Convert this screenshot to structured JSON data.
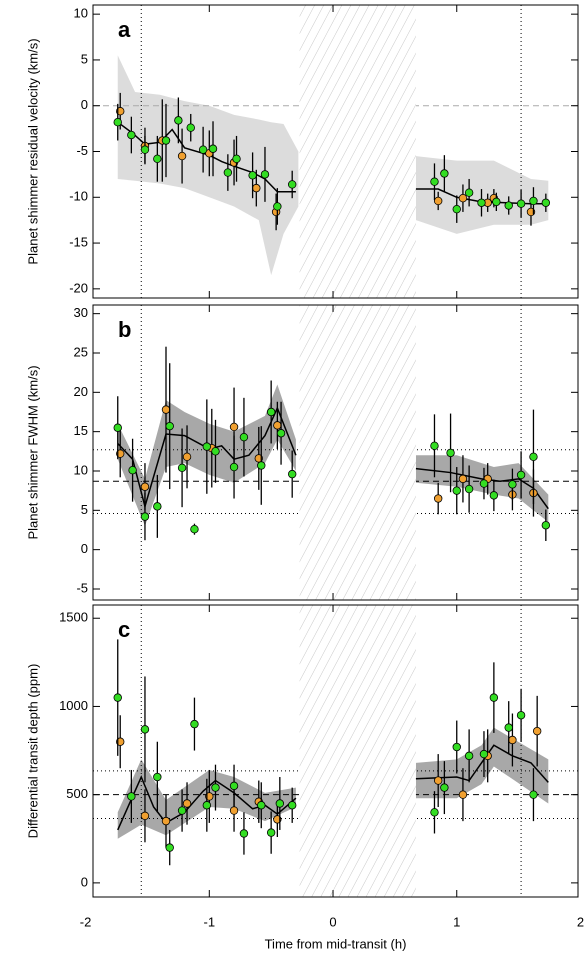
{
  "chart_data": [
    {
      "type": "scatter",
      "panel_label": "a",
      "ylabel": "Planet shimmer residual velocity (km/s)",
      "xlim": [
        -1.94,
        1.98
      ],
      "xticks": [
        -2,
        -1,
        0,
        1,
        2
      ],
      "ylim": [
        -21,
        11
      ],
      "yticks": [
        10,
        5,
        0,
        -5,
        -10,
        -15,
        -20
      ],
      "hatch": [
        -0.27,
        0.67
      ],
      "vlines": [
        -1.55,
        1.52
      ],
      "hlines": [
        {
          "value": 0,
          "style": "dashed",
          "color": "#aaaaaa"
        }
      ],
      "band": {
        "color": "#dcdcdc",
        "x": [
          -1.74,
          -1.6,
          -1.4,
          -1.2,
          -1.0,
          -0.8,
          -0.6,
          -0.5,
          -0.4,
          -0.28,
          null,
          0.67,
          1.0,
          1.3,
          1.6,
          1.74
        ],
        "upper": [
          5.5,
          1.5,
          1.2,
          0.5,
          0,
          -1,
          -1.5,
          -1.8,
          -2,
          -5,
          null,
          -5.5,
          -6,
          -6,
          -8,
          -8.2
        ],
        "lower": [
          -8,
          -8.2,
          -8.5,
          -9,
          -10,
          -11,
          -12.5,
          -18.5,
          -14,
          -11,
          null,
          -12.5,
          -14,
          -13,
          -13,
          -12.5
        ]
      },
      "model": {
        "color": "#000000",
        "x": [
          -1.74,
          -1.62,
          -1.52,
          -1.4,
          -1.3,
          -1.2,
          -1.0,
          -0.9,
          -0.8,
          -0.65,
          -0.55,
          -0.45,
          -0.3,
          null,
          0.67,
          0.85,
          1.0,
          1.2,
          1.4,
          1.6,
          1.74
        ],
        "values": [
          -1.8,
          -3,
          -4.2,
          -4,
          -2.6,
          -4.6,
          -5.4,
          -6.1,
          -6.6,
          -7.3,
          -8,
          -9.4,
          -9.4,
          null,
          -9.1,
          -9.1,
          -10.0,
          -10.5,
          -10.6,
          -10.7,
          -10.7
        ]
      },
      "series": [
        {
          "color": "#f0a030",
          "x": [
            -1.72,
            -1.52,
            -1.38,
            -1.22,
            -1.0,
            -0.8,
            -0.62,
            -0.46,
            0.85,
            1.05,
            1.25,
            1.3,
            1.6
          ],
          "values": [
            -0.6,
            -4.4,
            -3.8,
            -5.5,
            -5.2,
            -6.2,
            -9.0,
            -11.6,
            -10.4,
            -10.1,
            -10.6,
            -10.1,
            -11.6
          ],
          "errors": [
            2,
            2,
            4.5,
            3,
            2.5,
            2.5,
            2,
            2,
            1,
            1.5,
            1,
            1,
            1.5
          ]
        },
        {
          "color": "#33dd22",
          "x": [
            -1.74,
            -1.63,
            -1.52,
            -1.42,
            -1.35,
            -1.25,
            -1.15,
            -1.05,
            -0.97,
            -0.85,
            -0.78,
            -0.65,
            -0.55,
            -0.45,
            -0.33,
            0.82,
            0.9,
            1.0,
            1.1,
            1.2,
            1.32,
            1.42,
            1.52,
            1.62,
            1.72
          ],
          "values": [
            -1.8,
            -3.2,
            -4.8,
            -5.8,
            -3.8,
            -1.6,
            -2.4,
            -4.8,
            -4.7,
            -7.3,
            -5.8,
            -7.6,
            -7.5,
            -11,
            -8.6,
            -8.3,
            -7.4,
            -11.3,
            -9.5,
            -10.6,
            -10.5,
            -10.9,
            -10.7,
            -10.4,
            -10.6
          ],
          "errors": [
            2,
            2,
            1.5,
            2.5,
            4,
            2.5,
            1.5,
            2.5,
            3,
            2,
            2.5,
            2.5,
            3,
            2,
            1.5,
            2,
            2,
            1.5,
            1.5,
            1.5,
            1,
            1,
            1.5,
            1.5,
            1
          ]
        }
      ]
    },
    {
      "type": "scatter",
      "panel_label": "b",
      "ylabel": "Planet shimmer FWHM (km/s)",
      "xlim": [
        -1.94,
        1.98
      ],
      "xticks": [
        -2,
        -1,
        0,
        1,
        2
      ],
      "ylim": [
        -6.4,
        31.1
      ],
      "yticks": [
        30,
        25,
        20,
        15,
        10,
        5,
        0,
        -5
      ],
      "hatch": [
        -0.27,
        0.67
      ],
      "vlines": [
        -1.55,
        1.52
      ],
      "hlines": [
        {
          "value": 8.7,
          "style": "dashed",
          "color": "#000000"
        },
        {
          "value": 12.7,
          "style": "dotted",
          "color": "#000000"
        },
        {
          "value": 4.6,
          "style": "dotted",
          "color": "#000000"
        }
      ],
      "band": {
        "color": "#a8a8a8",
        "x": [
          -1.74,
          -1.52,
          -1.35,
          -1.2,
          -1.0,
          -0.8,
          -0.55,
          -0.45,
          -0.3,
          null,
          0.67,
          1.0,
          1.3,
          1.5,
          1.74
        ],
        "upper": [
          16,
          9,
          19,
          17.5,
          16,
          15,
          17,
          21,
          14,
          null,
          12,
          12,
          10.5,
          11,
          7
        ],
        "lower": [
          11.5,
          3,
          10.5,
          11,
          9.5,
          8.5,
          11,
          14,
          10,
          null,
          8.5,
          8,
          7,
          6.5,
          3.5
        ]
      },
      "model": {
        "color": "#000000",
        "x": [
          -1.74,
          -1.62,
          -1.52,
          -1.35,
          -1.2,
          -1.0,
          -0.9,
          -0.8,
          -0.68,
          -0.55,
          -0.45,
          -0.3,
          null,
          0.67,
          0.95,
          1.2,
          1.35,
          1.5,
          1.62,
          1.74
        ],
        "values": [
          13.5,
          11.5,
          5.5,
          14.7,
          14.5,
          12.8,
          13.2,
          11.5,
          12.0,
          14.5,
          18.0,
          12.0,
          null,
          10.3,
          9.8,
          9.0,
          8.7,
          9.0,
          7.8,
          5.2
        ]
      },
      "series": [
        {
          "color": "#f0a030",
          "x": [
            -1.72,
            -1.52,
            -1.35,
            -1.18,
            -0.98,
            -0.8,
            -0.6,
            -0.45,
            0.85,
            1.05,
            1.25,
            1.45,
            1.62
          ],
          "values": [
            12.2,
            8.0,
            17.8,
            11.8,
            12.9,
            15.6,
            11.6,
            15.8,
            6.5,
            9.0,
            9.0,
            7.0,
            7.2
          ],
          "errors": [
            3,
            3,
            8,
            4,
            5,
            5,
            4,
            3,
            2,
            3,
            2,
            2,
            3
          ]
        },
        {
          "color": "#33dd22",
          "x": [
            -1.74,
            -1.62,
            -1.52,
            -1.42,
            -1.32,
            -1.22,
            -1.12,
            -1.02,
            -0.95,
            -0.8,
            -0.72,
            -0.58,
            -0.5,
            -0.42,
            -0.33,
            0.82,
            0.95,
            1.0,
            1.1,
            1.22,
            1.3,
            1.45,
            1.52,
            1.62,
            1.72
          ],
          "values": [
            15.5,
            10.1,
            4.2,
            5.5,
            15.7,
            10.4,
            2.6,
            13.1,
            12.5,
            10.5,
            14.3,
            10.7,
            17.5,
            14.8,
            9.6,
            13.2,
            12.3,
            7.5,
            7.7,
            8.4,
            6.9,
            8.3,
            9.5,
            11.8,
            3.1
          ],
          "errors": [
            4,
            4,
            3,
            4,
            8,
            5,
            0.7,
            6,
            4,
            4,
            5,
            5,
            4,
            4,
            3,
            4,
            5,
            3,
            3,
            2,
            2,
            2,
            3,
            6,
            2
          ]
        }
      ]
    },
    {
      "type": "scatter",
      "panel_label": "c",
      "ylabel": "Differential transit depth (ppm)",
      "xlabel": "Time from mid-transit (h)",
      "xlim": [
        -1.94,
        1.98
      ],
      "xticks": [
        -2,
        -1,
        0,
        1,
        2
      ],
      "ylim": [
        -80,
        1575
      ],
      "yticks": [
        1500,
        1000,
        500,
        0
      ],
      "hatch": [
        -0.27,
        0.67
      ],
      "vlines": [
        -1.55,
        1.52
      ],
      "hlines": [
        {
          "value": 500,
          "style": "dashed",
          "color": "#000000"
        },
        {
          "value": 635,
          "style": "dotted",
          "color": "#000000"
        },
        {
          "value": 365,
          "style": "dotted",
          "color": "#000000"
        }
      ],
      "band": {
        "color": "#a8a8a8",
        "x": [
          -1.74,
          -1.55,
          -1.35,
          -1.0,
          -0.8,
          -0.55,
          -0.3,
          null,
          0.67,
          1.0,
          1.2,
          1.3,
          1.74
        ],
        "upper": [
          400,
          700,
          470,
          640,
          600,
          510,
          540,
          null,
          680,
          700,
          780,
          880,
          700
        ],
        "lower": [
          250,
          330,
          270,
          430,
          420,
          350,
          430,
          null,
          480,
          480,
          560,
          660,
          450
        ]
      },
      "model": {
        "color": "#000000",
        "x": [
          -1.74,
          -1.55,
          -1.45,
          -1.35,
          -1.2,
          -1.05,
          -0.95,
          -0.8,
          -0.65,
          -0.55,
          -0.45,
          -0.3,
          null,
          0.67,
          1.0,
          1.1,
          1.3,
          1.45,
          1.6,
          1.74
        ],
        "values": [
          300,
          600,
          430,
          340,
          400,
          520,
          580,
          510,
          420,
          440,
          390,
          480,
          null,
          590,
          600,
          580,
          780,
          720,
          680,
          570
        ]
      },
      "series": [
        {
          "color": "#f0a030",
          "x": [
            -1.72,
            -1.52,
            -1.35,
            -1.18,
            -1.0,
            -0.8,
            -0.6,
            -0.45,
            0.85,
            1.05,
            1.25,
            1.45,
            1.65
          ],
          "values": [
            800,
            380,
            350,
            450,
            490,
            410,
            460,
            360,
            580,
            500,
            720,
            810,
            860
          ],
          "errors": [
            150,
            150,
            150,
            120,
            150,
            120,
            120,
            100,
            150,
            150,
            150,
            150,
            200
          ]
        },
        {
          "color": "#33dd22",
          "x": [
            -1.74,
            -1.63,
            -1.52,
            -1.42,
            -1.32,
            -1.22,
            -1.12,
            -1.02,
            -0.95,
            -0.8,
            -0.72,
            -0.58,
            -0.5,
            -0.43,
            -0.33,
            0.82,
            0.9,
            1.0,
            1.1,
            1.22,
            1.3,
            1.42,
            1.52,
            1.62
          ],
          "values": [
            1050,
            490,
            870,
            600,
            200,
            410,
            900,
            440,
            540,
            550,
            280,
            440,
            285,
            450,
            440,
            400,
            540,
            770,
            720,
            730,
            1050,
            880,
            950,
            500
          ],
          "errors": [
            330,
            150,
            300,
            200,
            100,
            120,
            150,
            150,
            130,
            120,
            120,
            130,
            120,
            150,
            100,
            120,
            150,
            150,
            150,
            130,
            200,
            150,
            150,
            150
          ]
        }
      ]
    }
  ]
}
